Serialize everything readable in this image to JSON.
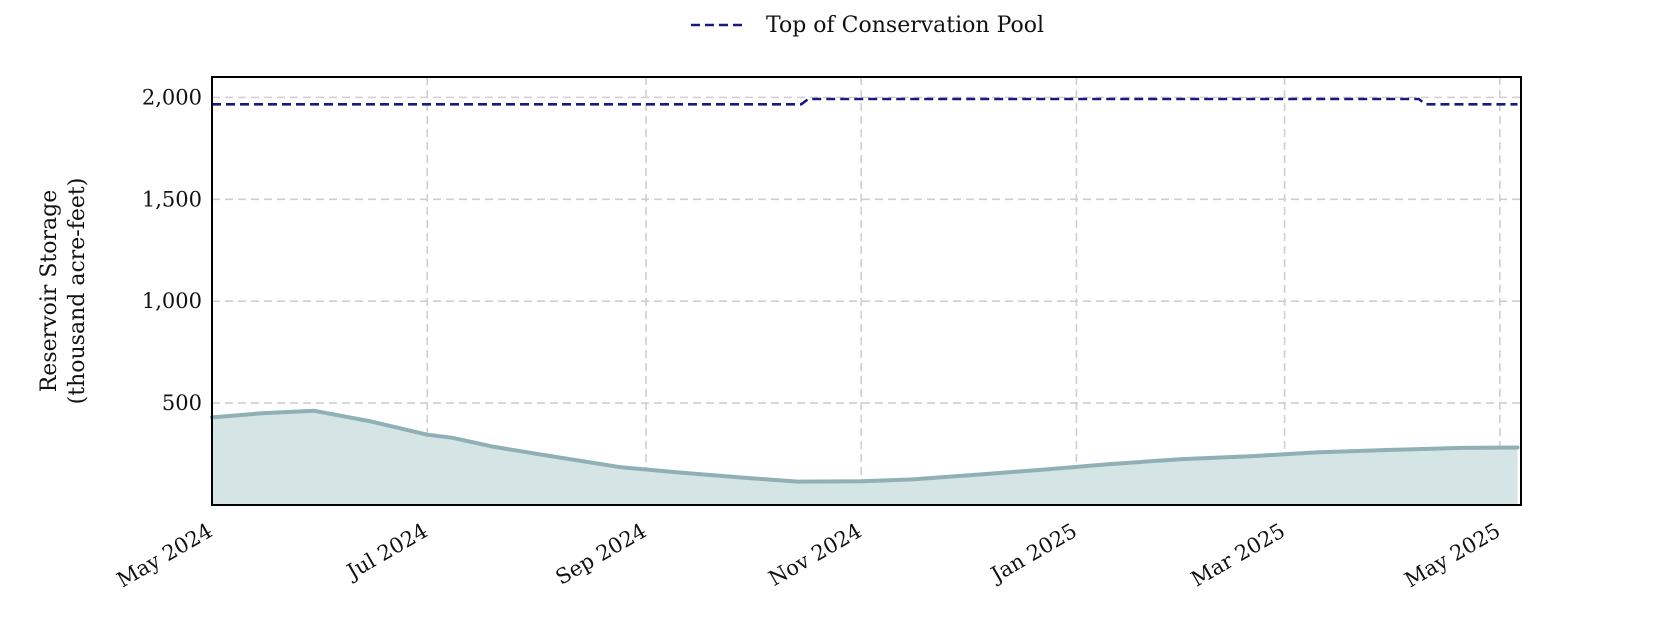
{
  "chart_data": {
    "type": "area",
    "title": "",
    "xlabel": "",
    "ylabel": [
      "Reservoir Storage",
      "(thousand acre-feet)"
    ],
    "x_range": [
      "2024-05-01",
      "2025-05-07"
    ],
    "ylim": [
      0,
      2100
    ],
    "grid": true,
    "legend_position": "top-center",
    "x_ticks": [
      {
        "date": "2024-05-01",
        "label": "May 2024"
      },
      {
        "date": "2024-07-01",
        "label": "Jul 2024"
      },
      {
        "date": "2024-09-01",
        "label": "Sep 2024"
      },
      {
        "date": "2024-11-01",
        "label": "Nov 2024"
      },
      {
        "date": "2025-01-01",
        "label": "Jan 2025"
      },
      {
        "date": "2025-03-01",
        "label": "Mar 2025"
      },
      {
        "date": "2025-05-01",
        "label": "May 2025"
      }
    ],
    "y_ticks": [
      {
        "value": 500,
        "label": "500"
      },
      {
        "value": 1000,
        "label": "1,000"
      },
      {
        "value": 1500,
        "label": "1,500"
      },
      {
        "value": 2000,
        "label": "2,000"
      }
    ],
    "series": [
      {
        "kind": "area",
        "color": "#8fb0b5",
        "fill_color": "#d5e4e5",
        "points": [
          {
            "x": "2024-05-01",
            "y": 430
          },
          {
            "x": "2024-05-15",
            "y": 450
          },
          {
            "x": "2024-05-30",
            "y": 462
          },
          {
            "x": "2024-06-15",
            "y": 410
          },
          {
            "x": "2024-07-01",
            "y": 345
          },
          {
            "x": "2024-07-08",
            "y": 330
          },
          {
            "x": "2024-07-20",
            "y": 285
          },
          {
            "x": "2024-08-05",
            "y": 240
          },
          {
            "x": "2024-08-25",
            "y": 185
          },
          {
            "x": "2024-09-10",
            "y": 160
          },
          {
            "x": "2024-09-28",
            "y": 135
          },
          {
            "x": "2024-10-14",
            "y": 115
          },
          {
            "x": "2024-11-01",
            "y": 117
          },
          {
            "x": "2024-11-15",
            "y": 125
          },
          {
            "x": "2024-12-05",
            "y": 150
          },
          {
            "x": "2024-12-24",
            "y": 175
          },
          {
            "x": "2025-01-10",
            "y": 200
          },
          {
            "x": "2025-01-31",
            "y": 225
          },
          {
            "x": "2025-02-20",
            "y": 240
          },
          {
            "x": "2025-03-10",
            "y": 258
          },
          {
            "x": "2025-03-30",
            "y": 270
          },
          {
            "x": "2025-04-20",
            "y": 280
          },
          {
            "x": "2025-05-06",
            "y": 282
          }
        ]
      },
      {
        "kind": "line",
        "name": "Top of Conservation Pool",
        "color": "#1a1a7e",
        "dashed": true,
        "points": [
          {
            "x": "2024-05-01",
            "y": 1966
          },
          {
            "x": "2024-10-15",
            "y": 1966
          },
          {
            "x": "2024-10-17",
            "y": 1992
          },
          {
            "x": "2025-04-08",
            "y": 1992
          },
          {
            "x": "2025-04-10",
            "y": 1966
          },
          {
            "x": "2025-05-06",
            "y": 1966
          }
        ]
      }
    ]
  }
}
